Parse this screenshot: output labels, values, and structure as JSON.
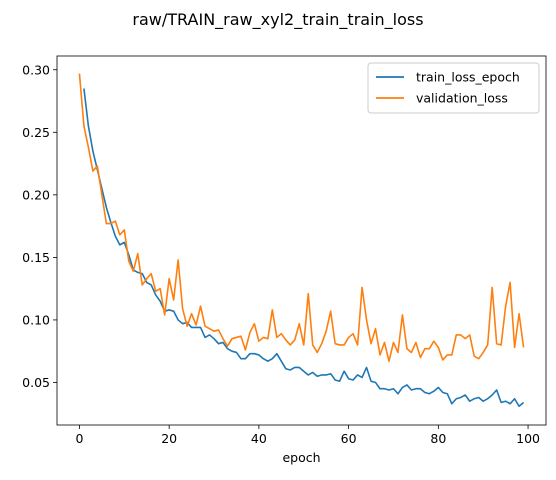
{
  "chart_data": {
    "type": "line",
    "title": "raw/TRAIN_raw_xyl2_train_train_loss",
    "xlabel": "epoch",
    "ylabel": "",
    "xlim": [
      -5,
      104
    ],
    "ylim": [
      0.016,
      0.311
    ],
    "xticks": [
      0,
      20,
      40,
      60,
      80,
      100
    ],
    "yticks": [
      0.05,
      0.1,
      0.15,
      0.2,
      0.25,
      0.3
    ],
    "ytick_labels": [
      "0.05",
      "0.10",
      "0.15",
      "0.20",
      "0.25",
      "0.30"
    ],
    "xtick_labels": [
      "0",
      "20",
      "40",
      "60",
      "80",
      "100"
    ],
    "grid": false,
    "legend_position": "top-right",
    "series": [
      {
        "name": "train_loss_epoch",
        "color": "#1f77b4",
        "x_start": 1,
        "values": [
          0.285,
          0.255,
          0.235,
          0.22,
          0.205,
          0.19,
          0.178,
          0.167,
          0.16,
          0.162,
          0.152,
          0.14,
          0.138,
          0.137,
          0.13,
          0.128,
          0.12,
          0.115,
          0.107,
          0.108,
          0.107,
          0.1,
          0.097,
          0.098,
          0.094,
          0.094,
          0.094,
          0.086,
          0.088,
          0.085,
          0.081,
          0.082,
          0.077,
          0.075,
          0.074,
          0.069,
          0.069,
          0.073,
          0.073,
          0.072,
          0.069,
          0.067,
          0.069,
          0.073,
          0.067,
          0.061,
          0.06,
          0.062,
          0.062,
          0.059,
          0.056,
          0.058,
          0.055,
          0.056,
          0.056,
          0.057,
          0.052,
          0.051,
          0.059,
          0.053,
          0.052,
          0.056,
          0.054,
          0.062,
          0.051,
          0.05,
          0.045,
          0.045,
          0.044,
          0.045,
          0.041,
          0.046,
          0.048,
          0.044,
          0.045,
          0.045,
          0.042,
          0.041,
          0.043,
          0.046,
          0.042,
          0.041,
          0.033,
          0.037,
          0.038,
          0.04,
          0.035,
          0.037,
          0.038,
          0.035,
          0.037,
          0.04,
          0.044,
          0.034,
          0.035,
          0.033,
          0.037,
          0.031,
          0.034
        ]
      },
      {
        "name": "validation_loss",
        "color": "#ff7f0e",
        "x_start": 0,
        "values": [
          0.297,
          0.255,
          0.238,
          0.219,
          0.223,
          0.2,
          0.177,
          0.177,
          0.179,
          0.168,
          0.172,
          0.147,
          0.139,
          0.153,
          0.128,
          0.133,
          0.137,
          0.123,
          0.125,
          0.104,
          0.133,
          0.116,
          0.148,
          0.109,
          0.095,
          0.105,
          0.096,
          0.111,
          0.095,
          0.093,
          0.091,
          0.092,
          0.085,
          0.079,
          0.085,
          0.086,
          0.087,
          0.076,
          0.09,
          0.097,
          0.083,
          0.086,
          0.085,
          0.108,
          0.086,
          0.089,
          0.084,
          0.08,
          0.084,
          0.097,
          0.08,
          0.121,
          0.08,
          0.074,
          0.081,
          0.091,
          0.107,
          0.081,
          0.08,
          0.08,
          0.086,
          0.089,
          0.08,
          0.126,
          0.1,
          0.081,
          0.093,
          0.072,
          0.082,
          0.067,
          0.082,
          0.074,
          0.104,
          0.077,
          0.074,
          0.082,
          0.07,
          0.077,
          0.077,
          0.083,
          0.078,
          0.068,
          0.072,
          0.072,
          0.088,
          0.088,
          0.085,
          0.088,
          0.071,
          0.069,
          0.074,
          0.08,
          0.126,
          0.081,
          0.08,
          0.111,
          0.13,
          0.078,
          0.105,
          0.078
        ]
      }
    ]
  }
}
